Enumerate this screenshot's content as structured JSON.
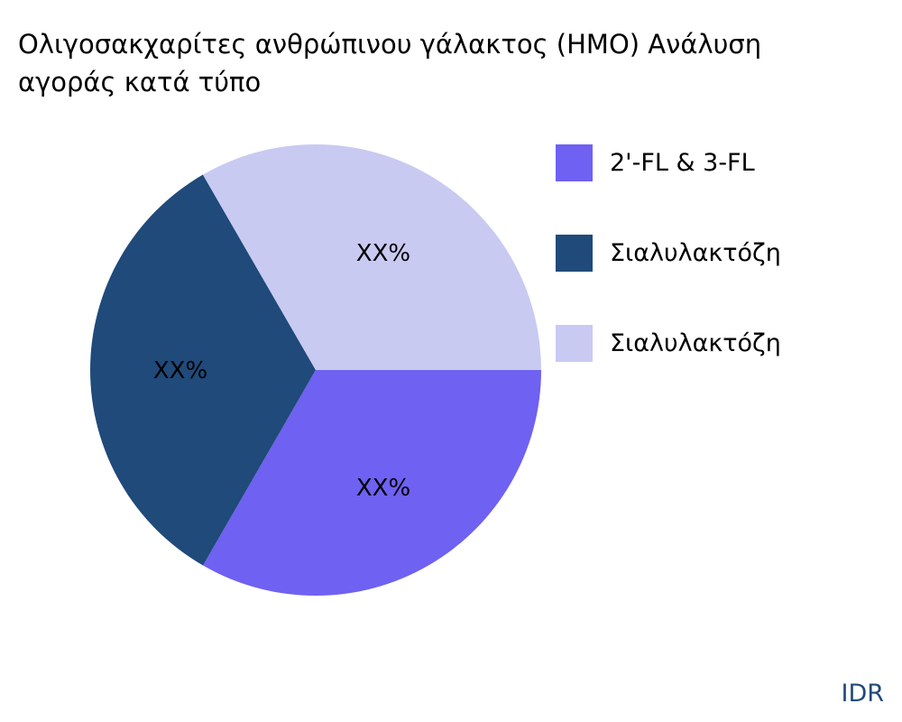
{
  "chart_data": {
    "type": "pie",
    "title_lines": [
      "Ολιγοσακχαρίτες ανθρώπινου γάλακτος (HMO) Ανάλυση",
      "αγοράς κατά τύπο"
    ],
    "slices": [
      {
        "name": "2'-FL & 3-FL",
        "value": 33.33,
        "label": "XX%",
        "color": "#6f61f2"
      },
      {
        "name": "Σιαλυλακτόζη",
        "value": 33.33,
        "label": "XX%",
        "color": "#1f4a7a"
      },
      {
        "name": "Σιαλυλακτόζη",
        "value": 33.34,
        "label": "XX%",
        "color": "#c8caf2"
      }
    ],
    "legend_position": "right"
  },
  "brand": "IDR"
}
